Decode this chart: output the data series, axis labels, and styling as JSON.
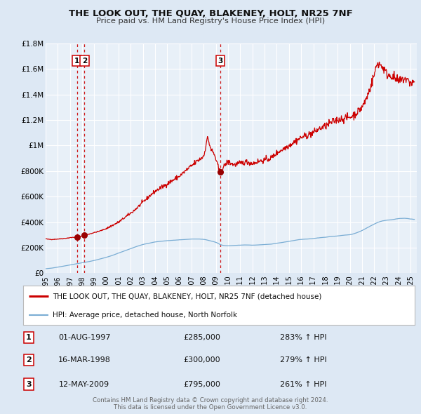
{
  "title": "THE LOOK OUT, THE QUAY, BLAKENEY, HOLT, NR25 7NF",
  "subtitle": "Price paid vs. HM Land Registry's House Price Index (HPI)",
  "bg_color": "#dde8f4",
  "plot_bg_color": "#e8f0f8",
  "grid_color": "#ffffff",
  "red_line_color": "#cc0000",
  "blue_line_color": "#7aadd4",
  "sale_marker_color": "#990000",
  "dashed_line_color": "#cc0000",
  "x_start": 1995.0,
  "x_end": 2025.5,
  "y_min": 0,
  "y_max": 1800000,
  "ytick_values": [
    0,
    200000,
    400000,
    600000,
    800000,
    1000000,
    1200000,
    1400000,
    1600000,
    1800000
  ],
  "ytick_labels": [
    "£0",
    "£200K",
    "£400K",
    "£600K",
    "£800K",
    "£1M",
    "£1.2M",
    "£1.4M",
    "£1.6M",
    "£1.8M"
  ],
  "xtick_years": [
    1995,
    1996,
    1997,
    1998,
    1999,
    2000,
    2001,
    2002,
    2003,
    2004,
    2005,
    2006,
    2007,
    2008,
    2009,
    2010,
    2011,
    2012,
    2013,
    2014,
    2015,
    2016,
    2017,
    2018,
    2019,
    2020,
    2021,
    2022,
    2023,
    2024,
    2025
  ],
  "sale_dates": [
    1997.58,
    1998.21,
    2009.37
  ],
  "sale_prices": [
    285000,
    300000,
    795000
  ],
  "sale_labels": [
    "1",
    "2",
    "3"
  ],
  "legend_entries": [
    "THE LOOK OUT, THE QUAY, BLAKENEY, HOLT, NR25 7NF (detached house)",
    "HPI: Average price, detached house, North Norfolk"
  ],
  "table_rows": [
    {
      "num": "1",
      "date": "01-AUG-1997",
      "price": "£285,000",
      "hpi": "283% ↑ HPI"
    },
    {
      "num": "2",
      "date": "16-MAR-1998",
      "price": "£300,000",
      "hpi": "279% ↑ HPI"
    },
    {
      "num": "3",
      "date": "12-MAY-2009",
      "price": "£795,000",
      "hpi": "261% ↑ HPI"
    }
  ],
  "footer": "Contains HM Land Registry data © Crown copyright and database right 2024.\nThis data is licensed under the Open Government Licence v3.0."
}
